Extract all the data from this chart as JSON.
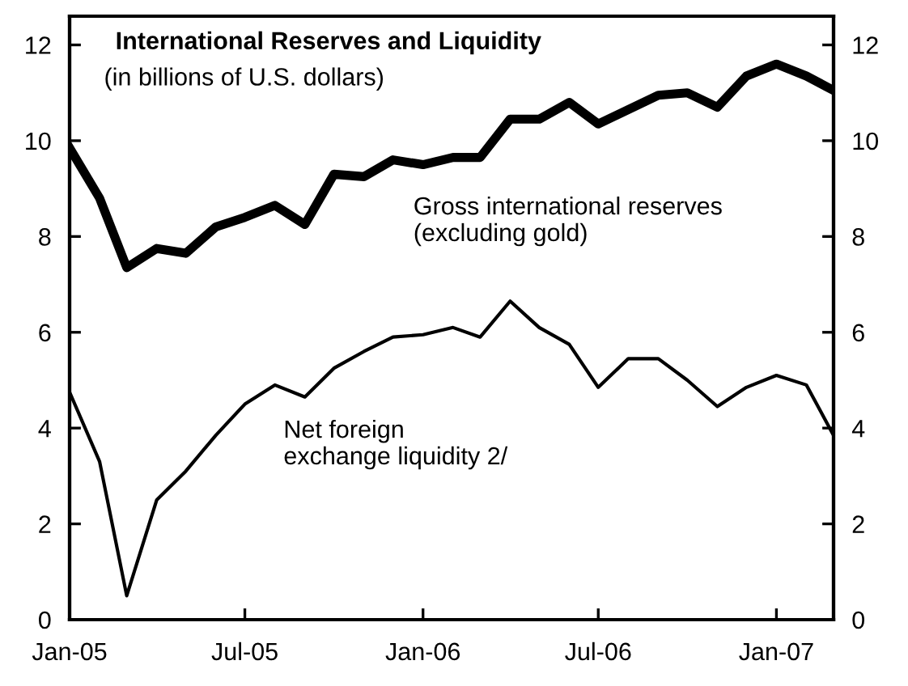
{
  "chart_data": {
    "type": "line",
    "title": "International Reserves and Liquidity",
    "subtitle": "(in billions of U.S. dollars)",
    "x": [
      "2005-01",
      "2005-02",
      "2005-03",
      "2005-04",
      "2005-05",
      "2005-06",
      "2005-07",
      "2005-08",
      "2005-09",
      "2005-10",
      "2005-11",
      "2005-12",
      "2006-01",
      "2006-02",
      "2006-03",
      "2006-04",
      "2006-05",
      "2006-06",
      "2006-07",
      "2006-08",
      "2006-09",
      "2006-10",
      "2006-11",
      "2006-12",
      "2007-01",
      "2007-02",
      "2007-03"
    ],
    "series": [
      {
        "name": "Gross international reserves\n(excluding gold)",
        "color": "#000000",
        "values": [
          9.85,
          8.8,
          7.35,
          7.75,
          7.65,
          8.2,
          8.4,
          8.65,
          8.25,
          9.3,
          9.25,
          9.6,
          9.5,
          9.65,
          9.65,
          10.45,
          10.45,
          10.8,
          10.35,
          10.65,
          10.95,
          11.0,
          10.7,
          11.35,
          11.6,
          11.35,
          11.05
        ]
      },
      {
        "name": "Net foreign\nexchange liquidity 2/",
        "color": "#000000",
        "values": [
          4.75,
          3.3,
          0.5,
          2.5,
          3.1,
          3.85,
          4.5,
          4.9,
          4.65,
          5.25,
          5.6,
          5.9,
          5.95,
          6.1,
          5.9,
          6.65,
          6.1,
          5.75,
          4.85,
          5.45,
          5.45,
          5.0,
          4.45,
          4.85,
          5.1,
          4.9,
          3.85
        ]
      }
    ],
    "xlim": [
      "2005-01",
      "2007-03"
    ],
    "xticks": [
      {
        "value": "2005-01",
        "label": "Jan-05"
      },
      {
        "value": "2005-07",
        "label": "Jul-05"
      },
      {
        "value": "2006-01",
        "label": "Jan-06"
      },
      {
        "value": "2006-07",
        "label": "Jul-06"
      },
      {
        "value": "2007-01",
        "label": "Jan-07"
      }
    ],
    "ylim": [
      0,
      12.6
    ],
    "yticks": [
      0,
      2,
      4,
      6,
      8,
      10,
      12
    ],
    "y2lim": [
      0,
      12.6
    ],
    "y2ticks": [
      0,
      2,
      4,
      6,
      8,
      10,
      12
    ],
    "grid": false,
    "legend": false,
    "marker": "none",
    "line_style": "solid"
  }
}
